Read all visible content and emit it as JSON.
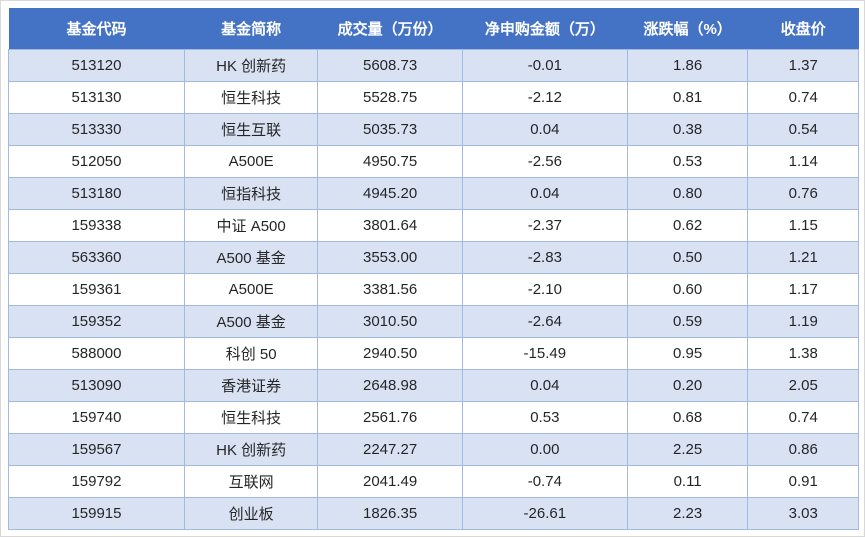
{
  "colors": {
    "header_bg": "#4472C4",
    "header_text": "#FFFFFF",
    "band_fill": "#D9E2F3",
    "border": "#A3B9DF",
    "cell_text": "#262626"
  },
  "chart_data": {
    "type": "table",
    "title": "",
    "columns": [
      "基金代码",
      "基金简称",
      "成交量（万份）",
      "净申购金额（万）",
      "涨跌幅（%）",
      "收盘价"
    ],
    "column_keys": [
      "fund-code",
      "fund-name",
      "volume",
      "net-purchase",
      "change-pct",
      "close-price"
    ],
    "rows": [
      [
        "513120",
        "HK 创新药",
        "5608.73",
        "-0.01",
        "1.86",
        "1.37"
      ],
      [
        "513130",
        "恒生科技",
        "5528.75",
        "-2.12",
        "0.81",
        "0.74"
      ],
      [
        "513330",
        "恒生互联",
        "5035.73",
        "0.04",
        "0.38",
        "0.54"
      ],
      [
        "512050",
        "A500E",
        "4950.75",
        "-2.56",
        "0.53",
        "1.14"
      ],
      [
        "513180",
        "恒指科技",
        "4945.20",
        "0.04",
        "0.80",
        "0.76"
      ],
      [
        "159338",
        "中证 A500",
        "3801.64",
        "-2.37",
        "0.62",
        "1.15"
      ],
      [
        "563360",
        "A500 基金",
        "3553.00",
        "-2.83",
        "0.50",
        "1.21"
      ],
      [
        "159361",
        "A500E",
        "3381.56",
        "-2.10",
        "0.60",
        "1.17"
      ],
      [
        "159352",
        "A500 基金",
        "3010.50",
        "-2.64",
        "0.59",
        "1.19"
      ],
      [
        "588000",
        "科创 50",
        "2940.50",
        "-15.49",
        "0.95",
        "1.38"
      ],
      [
        "513090",
        "香港证券",
        "2648.98",
        "0.04",
        "0.20",
        "2.05"
      ],
      [
        "159740",
        "恒生科技",
        "2561.76",
        "0.53",
        "0.68",
        "0.74"
      ],
      [
        "159567",
        "HK 创新药",
        "2247.27",
        "0.00",
        "2.25",
        "0.86"
      ],
      [
        "159792",
        "互联网",
        "2041.49",
        "-0.74",
        "0.11",
        "0.91"
      ],
      [
        "159915",
        "创业板",
        "1826.35",
        "-26.61",
        "2.23",
        "3.03"
      ]
    ]
  }
}
